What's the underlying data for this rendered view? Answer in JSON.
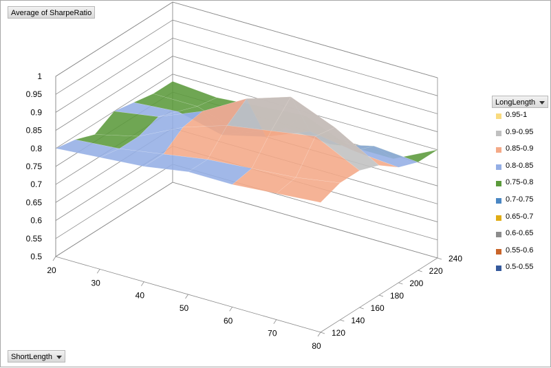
{
  "fields": {
    "values": "Average of SharpeRatio",
    "axis": "ShortLength",
    "series": "LongLength"
  },
  "colors": {
    "gridline": "#888888",
    "band_colors": {
      "0.95-1": "#f9db7f",
      "0.9-0.95": "#c0c0c0",
      "0.85-0.9": "#f4a987",
      "0.8-0.85": "#94aee5",
      "0.75-0.8": "#5b9a3b",
      "0.7-0.75": "#4a87c3",
      "0.65-0.7": "#e0ac15",
      "0.6-0.65": "#8c8c8c",
      "0.55-0.6": "#c9652a",
      "0.5-0.55": "#35599c"
    }
  },
  "chart_data": {
    "type": "3d-surface",
    "x_field": "ShortLength",
    "y_field": "LongLength",
    "z_field": "Average of SharpeRatio",
    "x": [
      20,
      30,
      40,
      50,
      60,
      70,
      80
    ],
    "x_tick_labels": [
      "20",
      "30",
      "40",
      "50",
      "60",
      "70",
      "80"
    ],
    "y": [
      120,
      140,
      160,
      180,
      200,
      220,
      240
    ],
    "y_tick_labels": [
      "120",
      "140",
      "160",
      "180",
      "200",
      "220",
      "240"
    ],
    "z_tick_labels": [
      "0.5",
      "0.55",
      "0.6",
      "0.65",
      "0.7",
      "0.75",
      "0.8",
      "0.85",
      "0.9",
      "0.95",
      "1"
    ],
    "zlim": [
      0.5,
      1
    ],
    "legend_title": "LongLength",
    "legend_position": "right",
    "bands": [
      {
        "label": "0.95-1",
        "min": 0.95,
        "max": 1.0
      },
      {
        "label": "0.9-0.95",
        "min": 0.9,
        "max": 0.95
      },
      {
        "label": "0.85-0.9",
        "min": 0.85,
        "max": 0.9
      },
      {
        "label": "0.8-0.85",
        "min": 0.8,
        "max": 0.85
      },
      {
        "label": "0.75-0.8",
        "min": 0.75,
        "max": 0.8
      },
      {
        "label": "0.7-0.75",
        "min": 0.7,
        "max": 0.75
      },
      {
        "label": "0.65-0.7",
        "min": 0.65,
        "max": 0.7
      },
      {
        "label": "0.6-0.65",
        "min": 0.6,
        "max": 0.65
      },
      {
        "label": "0.55-0.6",
        "min": 0.55,
        "max": 0.6
      },
      {
        "label": "0.5-0.55",
        "min": 0.5,
        "max": 0.55
      }
    ],
    "z_values": [
      [
        0.8,
        0.81,
        0.82,
        0.84,
        0.84,
        0.85,
        0.86
      ],
      [
        0.79,
        0.8,
        0.82,
        0.84,
        0.85,
        0.86,
        0.88
      ],
      [
        0.77,
        0.8,
        0.86,
        0.9,
        0.92,
        0.94,
        0.88
      ],
      [
        0.8,
        0.82,
        0.87,
        0.94,
        0.98,
        0.93,
        0.86
      ],
      [
        0.79,
        0.8,
        0.77,
        0.8,
        0.85,
        0.83,
        0.82
      ],
      [
        0.78,
        0.78,
        0.74,
        0.79,
        0.78,
        0.81,
        0.8
      ],
      [
        0.78,
        0.77,
        0.78,
        0.79,
        0.74,
        0.74,
        0.8
      ]
    ]
  }
}
